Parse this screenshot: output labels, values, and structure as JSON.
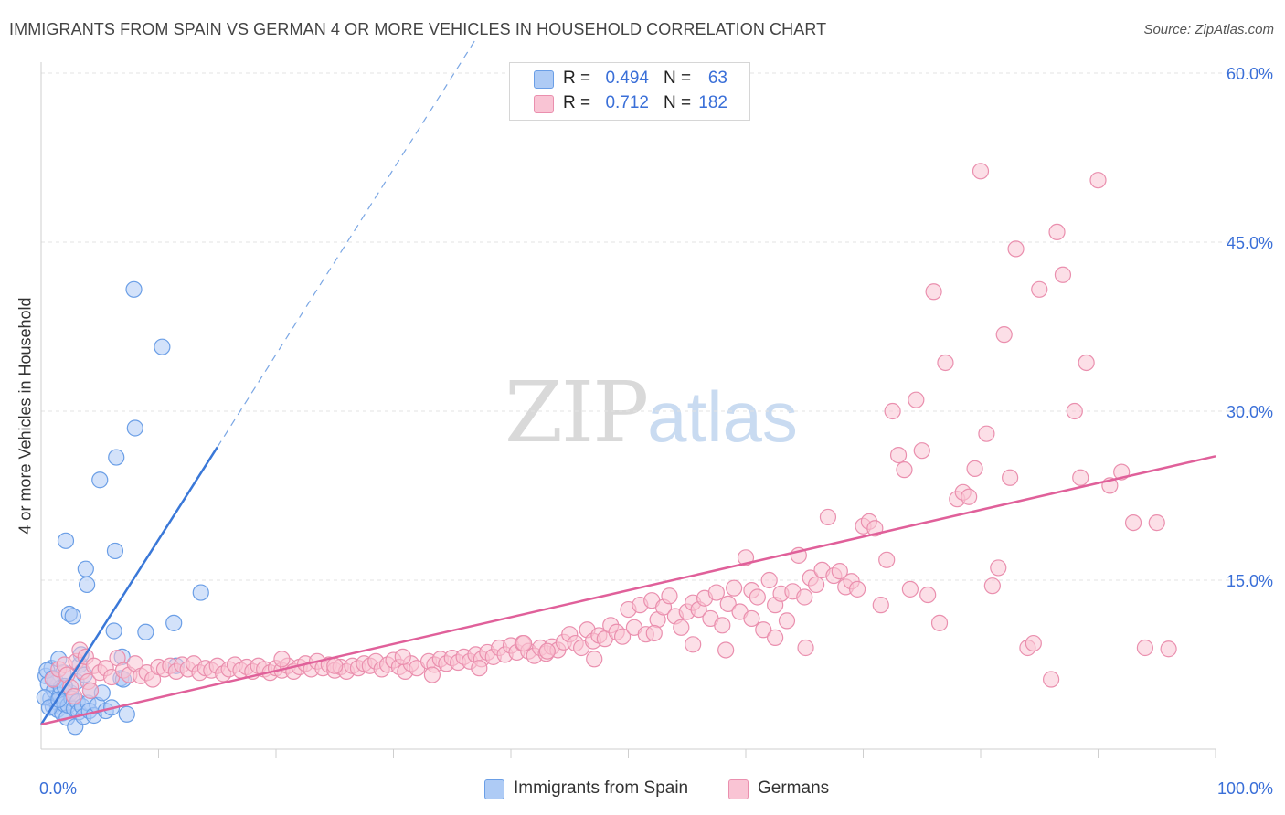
{
  "title": "IMMIGRANTS FROM SPAIN VS GERMAN 4 OR MORE VEHICLES IN HOUSEHOLD CORRELATION CHART",
  "source": "Source: ZipAtlas.com",
  "watermark": {
    "zip": "ZIP",
    "atlas": "atlas"
  },
  "legend": {
    "r_label": "R =",
    "n_label": "N =",
    "rows": [
      {
        "r": "0.494",
        "n": "63",
        "fill": "#aecbf5",
        "stroke": "#6a9ee6"
      },
      {
        "r": "0.712",
        "n": "182",
        "fill": "#f9c4d4",
        "stroke": "#ea8fae"
      }
    ]
  },
  "bottom_legend": [
    "Immigrants from Spain",
    "Germans"
  ],
  "chart_data": {
    "type": "scatter",
    "title": "IMMIGRANTS FROM SPAIN VS GERMAN 4 OR MORE VEHICLES IN HOUSEHOLD CORRELATION CHART",
    "xlabel": "",
    "ylabel": "4 or more Vehicles in Household",
    "xlim": [
      0,
      100
    ],
    "ylim": [
      0,
      60
    ],
    "x_tick_labels": [
      "0.0%",
      "100.0%"
    ],
    "y_ticks": [
      15,
      30,
      45,
      60
    ],
    "y_tick_labels": [
      "15.0%",
      "30.0%",
      "45.0%",
      "60.0%"
    ],
    "grid": true,
    "legend_position": "top-center",
    "series": [
      {
        "name": "Immigrants from Spain",
        "color": "#3a78d8",
        "fill": "#aecbf5",
        "trend": {
          "x0": 0,
          "y0": 2.2,
          "x1": 15,
          "y1": 26.8,
          "dashed_to_x": 37,
          "dashed_to_y": 63.0
        },
        "points": [
          [
            0.4,
            6.5
          ],
          [
            0.6,
            5.8
          ],
          [
            0.8,
            4.5
          ],
          [
            0.9,
            7.2
          ],
          [
            1.0,
            3.8
          ],
          [
            1.1,
            5.2
          ],
          [
            1.2,
            6.1
          ],
          [
            1.3,
            4.2
          ],
          [
            1.4,
            3.5
          ],
          [
            1.5,
            8.0
          ],
          [
            1.6,
            4.8
          ],
          [
            1.7,
            5.5
          ],
          [
            1.8,
            3.2
          ],
          [
            1.9,
            6.8
          ],
          [
            2.0,
            4.0
          ],
          [
            2.1,
            18.5
          ],
          [
            2.2,
            2.8
          ],
          [
            2.3,
            3.9
          ],
          [
            2.4,
            12.0
          ],
          [
            2.5,
            5.0
          ],
          [
            2.6,
            4.5
          ],
          [
            2.7,
            11.8
          ],
          [
            2.8,
            3.6
          ],
          [
            2.9,
            2.0
          ],
          [
            3.0,
            6.0
          ],
          [
            3.1,
            4.2
          ],
          [
            3.2,
            3.3
          ],
          [
            3.3,
            7.5
          ],
          [
            3.4,
            8.4
          ],
          [
            3.5,
            3.8
          ],
          [
            3.6,
            2.9
          ],
          [
            3.7,
            6.6
          ],
          [
            3.8,
            16.0
          ],
          [
            3.9,
            14.6
          ],
          [
            4.0,
            4.1
          ],
          [
            4.1,
            3.4
          ],
          [
            4.2,
            5.2
          ],
          [
            4.5,
            3.0
          ],
          [
            4.8,
            3.9
          ],
          [
            5.0,
            23.9
          ],
          [
            5.2,
            5.0
          ],
          [
            5.5,
            3.4
          ],
          [
            6.0,
            3.7
          ],
          [
            6.2,
            10.5
          ],
          [
            6.3,
            17.6
          ],
          [
            6.4,
            25.9
          ],
          [
            6.8,
            6.3
          ],
          [
            6.9,
            8.2
          ],
          [
            7.0,
            6.2
          ],
          [
            7.3,
            3.1
          ],
          [
            7.9,
            40.8
          ],
          [
            8.0,
            28.5
          ],
          [
            8.9,
            10.4
          ],
          [
            10.3,
            35.7
          ],
          [
            11.3,
            11.2
          ],
          [
            11.5,
            7.4
          ],
          [
            13.6,
            13.9
          ],
          [
            0.3,
            4.6
          ],
          [
            0.5,
            7.0
          ],
          [
            0.7,
            3.7
          ],
          [
            1.0,
            6.3
          ],
          [
            2.0,
            5.6
          ],
          [
            1.5,
            4.4
          ]
        ]
      },
      {
        "name": "Germans",
        "color": "#e0609a",
        "fill": "#f9c4d4",
        "trend": {
          "x0": 0,
          "y0": 2.2,
          "x1": 100,
          "y1": 26.0
        },
        "points": [
          [
            1.0,
            6.2
          ],
          [
            1.5,
            7.1
          ],
          [
            2.0,
            7.5
          ],
          [
            2.2,
            6.6
          ],
          [
            2.5,
            5.5
          ],
          [
            2.8,
            4.7
          ],
          [
            3.0,
            7.8
          ],
          [
            3.3,
            8.8
          ],
          [
            3.5,
            6.9
          ],
          [
            3.8,
            8.2
          ],
          [
            4.0,
            6.0
          ],
          [
            4.2,
            5.2
          ],
          [
            4.5,
            7.4
          ],
          [
            5.0,
            6.8
          ],
          [
            5.5,
            7.2
          ],
          [
            6.0,
            6.4
          ],
          [
            6.5,
            8.1
          ],
          [
            7.0,
            7.0
          ],
          [
            7.5,
            6.6
          ],
          [
            8.0,
            7.6
          ],
          [
            8.5,
            6.5
          ],
          [
            9.0,
            6.8
          ],
          [
            9.5,
            6.2
          ],
          [
            10.0,
            7.3
          ],
          [
            10.5,
            7.1
          ],
          [
            11.0,
            7.4
          ],
          [
            11.5,
            6.9
          ],
          [
            12.0,
            7.5
          ],
          [
            12.5,
            7.1
          ],
          [
            13.0,
            7.6
          ],
          [
            13.5,
            6.8
          ],
          [
            14.0,
            7.2
          ],
          [
            14.5,
            7.0
          ],
          [
            15.0,
            7.4
          ],
          [
            15.5,
            6.7
          ],
          [
            16.0,
            7.1
          ],
          [
            16.5,
            7.5
          ],
          [
            17.0,
            7.0
          ],
          [
            17.5,
            7.3
          ],
          [
            18.0,
            6.9
          ],
          [
            18.5,
            7.4
          ],
          [
            19.0,
            7.1
          ],
          [
            19.5,
            6.8
          ],
          [
            20.0,
            7.2
          ],
          [
            20.5,
            7.0
          ],
          [
            21.0,
            7.4
          ],
          [
            21.5,
            6.9
          ],
          [
            22.0,
            7.3
          ],
          [
            22.5,
            7.6
          ],
          [
            23.0,
            7.1
          ],
          [
            23.5,
            7.8
          ],
          [
            24.0,
            7.2
          ],
          [
            24.5,
            7.5
          ],
          [
            25.0,
            7.0
          ],
          [
            25.5,
            7.3
          ],
          [
            26.0,
            6.9
          ],
          [
            26.5,
            7.4
          ],
          [
            27.0,
            7.2
          ],
          [
            27.5,
            7.6
          ],
          [
            28.0,
            7.4
          ],
          [
            28.5,
            7.8
          ],
          [
            29.0,
            7.1
          ],
          [
            29.5,
            7.5
          ],
          [
            30.0,
            7.9
          ],
          [
            30.5,
            7.3
          ],
          [
            31.0,
            6.9
          ],
          [
            31.5,
            7.6
          ],
          [
            32.0,
            7.2
          ],
          [
            33.0,
            7.8
          ],
          [
            33.5,
            7.5
          ],
          [
            34.0,
            8.0
          ],
          [
            34.5,
            7.6
          ],
          [
            35.0,
            8.1
          ],
          [
            35.5,
            7.7
          ],
          [
            36.0,
            8.2
          ],
          [
            36.5,
            7.8
          ],
          [
            37.0,
            8.4
          ],
          [
            37.5,
            8.0
          ],
          [
            38.0,
            8.6
          ],
          [
            38.5,
            8.2
          ],
          [
            39.0,
            9.0
          ],
          [
            39.5,
            8.4
          ],
          [
            40.0,
            9.2
          ],
          [
            40.5,
            8.6
          ],
          [
            41.0,
            9.4
          ],
          [
            41.5,
            8.7
          ],
          [
            42.0,
            8.3
          ],
          [
            42.5,
            9.0
          ],
          [
            43.0,
            8.5
          ],
          [
            43.5,
            9.1
          ],
          [
            44.0,
            8.8
          ],
          [
            44.5,
            9.5
          ],
          [
            45.0,
            10.2
          ],
          [
            45.5,
            9.4
          ],
          [
            46.0,
            9.0
          ],
          [
            46.5,
            10.6
          ],
          [
            47.0,
            9.6
          ],
          [
            47.5,
            10.1
          ],
          [
            48.0,
            9.8
          ],
          [
            48.5,
            11.0
          ],
          [
            49.0,
            10.4
          ],
          [
            49.5,
            10.0
          ],
          [
            50.0,
            12.4
          ],
          [
            50.5,
            10.8
          ],
          [
            51.0,
            12.8
          ],
          [
            51.5,
            10.2
          ],
          [
            52.0,
            13.2
          ],
          [
            52.5,
            11.5
          ],
          [
            53.0,
            12.6
          ],
          [
            53.5,
            13.6
          ],
          [
            54.0,
            11.8
          ],
          [
            54.5,
            10.8
          ],
          [
            55.0,
            12.2
          ],
          [
            55.5,
            13.0
          ],
          [
            56.0,
            12.4
          ],
          [
            56.5,
            13.4
          ],
          [
            57.0,
            11.6
          ],
          [
            57.5,
            13.9
          ],
          [
            58.0,
            11.0
          ],
          [
            58.5,
            12.9
          ],
          [
            59.0,
            14.3
          ],
          [
            59.5,
            12.2
          ],
          [
            60.0,
            17.0
          ],
          [
            60.5,
            14.1
          ],
          [
            61.0,
            13.5
          ],
          [
            61.5,
            10.6
          ],
          [
            62.0,
            15.0
          ],
          [
            62.5,
            12.8
          ],
          [
            63.0,
            13.8
          ],
          [
            63.5,
            11.4
          ],
          [
            64.0,
            14.0
          ],
          [
            64.5,
            17.2
          ],
          [
            65.0,
            13.5
          ],
          [
            65.5,
            15.2
          ],
          [
            66.0,
            14.6
          ],
          [
            66.5,
            15.9
          ],
          [
            67.0,
            20.6
          ],
          [
            67.5,
            15.4
          ],
          [
            68.0,
            15.8
          ],
          [
            68.5,
            14.4
          ],
          [
            69.0,
            14.9
          ],
          [
            69.5,
            14.2
          ],
          [
            70.0,
            19.8
          ],
          [
            70.5,
            20.2
          ],
          [
            71.0,
            19.6
          ],
          [
            71.5,
            12.8
          ],
          [
            72.0,
            16.8
          ],
          [
            72.5,
            30.0
          ],
          [
            73.0,
            26.1
          ],
          [
            73.5,
            24.8
          ],
          [
            74.0,
            14.2
          ],
          [
            74.5,
            31.0
          ],
          [
            75.0,
            26.5
          ],
          [
            75.5,
            13.7
          ],
          [
            76.0,
            40.6
          ],
          [
            76.5,
            11.2
          ],
          [
            77.0,
            34.3
          ],
          [
            78.0,
            22.2
          ],
          [
            78.5,
            22.8
          ],
          [
            79.0,
            22.4
          ],
          [
            79.5,
            24.9
          ],
          [
            80.0,
            51.3
          ],
          [
            80.5,
            28.0
          ],
          [
            81.0,
            14.5
          ],
          [
            81.5,
            16.1
          ],
          [
            82.0,
            36.8
          ],
          [
            82.5,
            24.1
          ],
          [
            83.0,
            44.4
          ],
          [
            84.0,
            9.0
          ],
          [
            84.5,
            9.4
          ],
          [
            85.0,
            40.8
          ],
          [
            86.0,
            6.2
          ],
          [
            86.5,
            45.9
          ],
          [
            87.0,
            42.1
          ],
          [
            88.0,
            30.0
          ],
          [
            88.5,
            24.1
          ],
          [
            89.0,
            34.3
          ],
          [
            90.0,
            50.5
          ],
          [
            91.0,
            23.4
          ],
          [
            92.0,
            24.6
          ],
          [
            93.0,
            20.1
          ],
          [
            94.0,
            9.0
          ],
          [
            95.0,
            20.1
          ],
          [
            96.0,
            8.9
          ],
          [
            20.5,
            8.0
          ],
          [
            25.0,
            7.4
          ],
          [
            30.8,
            8.2
          ],
          [
            33.3,
            6.6
          ],
          [
            37.3,
            7.2
          ],
          [
            41.1,
            9.4
          ],
          [
            43.1,
            8.7
          ],
          [
            47.1,
            8.0
          ],
          [
            52.2,
            10.3
          ],
          [
            55.5,
            9.3
          ],
          [
            58.3,
            8.8
          ],
          [
            60.5,
            11.6
          ],
          [
            62.5,
            9.9
          ],
          [
            65.1,
            9.0
          ]
        ]
      }
    ]
  }
}
